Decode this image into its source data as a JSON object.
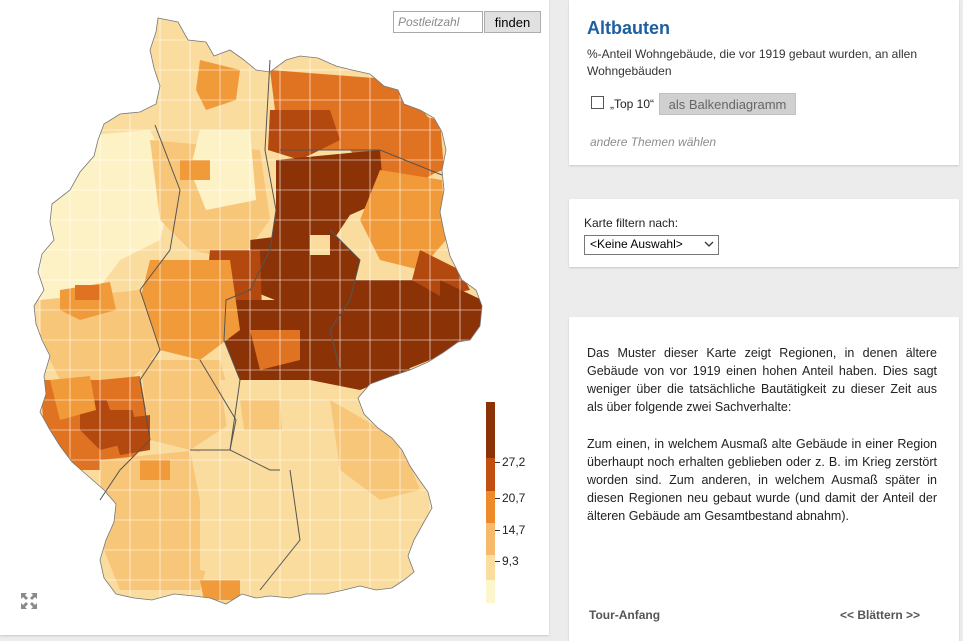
{
  "search": {
    "placeholder": "Postleitzahl",
    "value": "",
    "button_label": "finden"
  },
  "legend": {
    "labels": [
      "27,2",
      "20,7",
      "14,7",
      "9,3"
    ],
    "colors": [
      "#8b3207",
      "#c24f0f",
      "#ed8a2a",
      "#f7ba6a",
      "#fbdd9f",
      "#fdf5cb"
    ]
  },
  "map": {
    "palette": {
      "darkest": "#8b3207",
      "dark": "#b3490e",
      "medium": "#e07322",
      "orange": "#f19a3a",
      "light": "#f8c679",
      "lighter": "#fbdc9f",
      "palest": "#fdf2c6",
      "border": "#ffffff",
      "state_border": "#555555"
    }
  },
  "info": {
    "title": "Altbauten",
    "subtitle": "%-Anteil Wohngebäude, die vor 1919 gebaut wurden, an allen Wohngebäuden",
    "top10_label": "„Top 10“",
    "bar_chart_button": "als Balkendiagramm",
    "other_topics": "andere Themen wählen"
  },
  "filter": {
    "label": "Karte filtern nach:",
    "selected": "<Keine Auswahl>"
  },
  "description": {
    "p1": "Das Muster dieser Karte zeigt Regionen, in denen ältere Gebäude von vor 1919 einen hohen Anteil haben. Dies sagt weniger über die tatsächliche Bautätigkeit zu dieser Zeit aus als über folgende zwei Sachverhalte:",
    "p2": "Zum einen, in welchem Ausmaß alte Gebäude in einer Region überhaupt noch erhalten geblieben oder z. B. im Krieg zerstört worden sind. Zum anderen, in welchem Ausmaß später in diesen Regionen neu gebaut wurde (und damit der Anteil der älteren Gebäude am Gesamtbestand abnahm).",
    "tour_start": "Tour-Anfang",
    "browse": "<< Blättern >>"
  }
}
